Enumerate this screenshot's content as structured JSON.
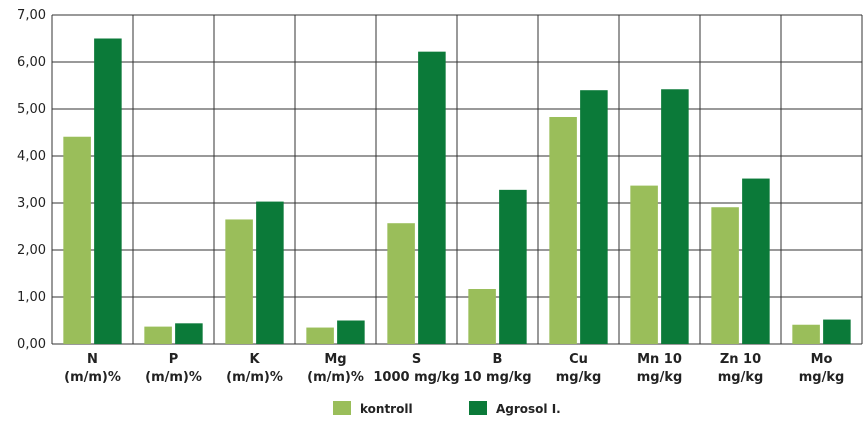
{
  "chart_data": {
    "type": "bar",
    "title": "",
    "xlabel": "",
    "ylabel": "",
    "ylim": [
      0,
      7
    ],
    "grid": true,
    "legend_position": "bottom",
    "y_ticks": [
      "0,00",
      "1,00",
      "2,00",
      "3,00",
      "4,00",
      "5,00",
      "6,00",
      "7,00"
    ],
    "categories": [
      [
        "N",
        "(m/m)%"
      ],
      [
        "P",
        "(m/m)%"
      ],
      [
        "K",
        "(m/m)%"
      ],
      [
        "Mg",
        "(m/m)%"
      ],
      [
        "S",
        "1000 mg/kg"
      ],
      [
        "B",
        "10 mg/kg"
      ],
      [
        "Cu",
        "mg/kg"
      ],
      [
        "Mn 10",
        "mg/kg"
      ],
      [
        "Zn 10",
        "mg/kg"
      ],
      [
        "Mo",
        "mg/kg"
      ]
    ],
    "series": [
      {
        "name": "kontroll",
        "color": "#9abe5a",
        "values": [
          4.41,
          0.37,
          2.65,
          0.35,
          2.57,
          1.17,
          4.83,
          3.37,
          2.91,
          0.41
        ]
      },
      {
        "name": "Agrosol I.",
        "color": "#0b7a39",
        "values": [
          6.5,
          0.44,
          3.03,
          0.5,
          6.22,
          3.28,
          5.4,
          5.42,
          3.52,
          0.52
        ]
      }
    ]
  }
}
